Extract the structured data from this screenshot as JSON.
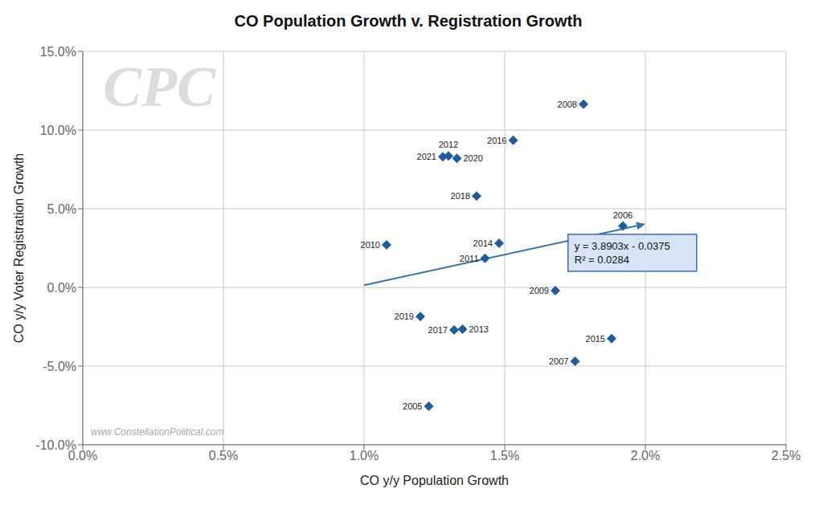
{
  "chart_data": {
    "type": "scatter",
    "title": "CO Population Growth v. Registration Growth",
    "xlabel": "CO y/y Population Growth",
    "ylabel": "CO y/y Voter Registration Growth",
    "x": [
      0.0123,
      0.0192,
      0.0175,
      0.0178,
      0.0168,
      0.0108,
      0.0143,
      0.013,
      0.0135,
      0.0148,
      0.0188,
      0.0153,
      0.0132,
      0.014,
      0.012,
      0.0133,
      0.0128
    ],
    "values": [
      -0.0755,
      0.039,
      -0.047,
      0.1165,
      -0.002,
      0.027,
      0.0185,
      0.0835,
      -0.0265,
      0.028,
      -0.0325,
      0.0935,
      -0.027,
      0.058,
      -0.0185,
      0.082,
      0.083
    ],
    "point_labels": [
      "2005",
      "2006",
      "2007",
      "2008",
      "2009",
      "2010",
      "2011",
      "2012",
      "2013",
      "2014",
      "2015",
      "2016",
      "2017",
      "2018",
      "2019",
      "2020",
      "2021"
    ],
    "color": "#1F5C9E",
    "marker": "diamond",
    "trendline": {
      "x": [
        0.01,
        0.02
      ],
      "y": [
        0.001403,
        0.040306
      ],
      "color": "#3471B8"
    },
    "equation": {
      "text": "y = 3.8903x - 0.0375\nR² = 0.0284",
      "x": 0.01725,
      "y": 0.022,
      "color": "#D6E4F5",
      "edge_color": "#3471B8"
    },
    "watermarks": [
      "CPC",
      "www.ConstellationPolitical.com"
    ],
    "xlim": [
      0.0,
      0.025
    ],
    "ylim": [
      -0.1,
      0.15
    ],
    "xticks": [
      {
        "value": 0.0,
        "label": "0.0%"
      },
      {
        "value": 0.005,
        "label": "0.5%"
      },
      {
        "value": 0.01,
        "label": "1.0%"
      },
      {
        "value": 0.015,
        "label": "1.5%"
      },
      {
        "value": 0.02,
        "label": "2.0%"
      },
      {
        "value": 0.025,
        "label": "2.5%"
      }
    ],
    "yticks": [
      {
        "value": -0.1,
        "label": "-10.0%"
      },
      {
        "value": -0.05,
        "label": "-5.0%"
      },
      {
        "value": 0.0,
        "label": "0.0%"
      },
      {
        "value": 0.05,
        "label": "5.0%"
      },
      {
        "value": 0.1,
        "label": "10.0%"
      },
      {
        "value": 0.15,
        "label": "15.0%"
      }
    ],
    "grid": true
  }
}
